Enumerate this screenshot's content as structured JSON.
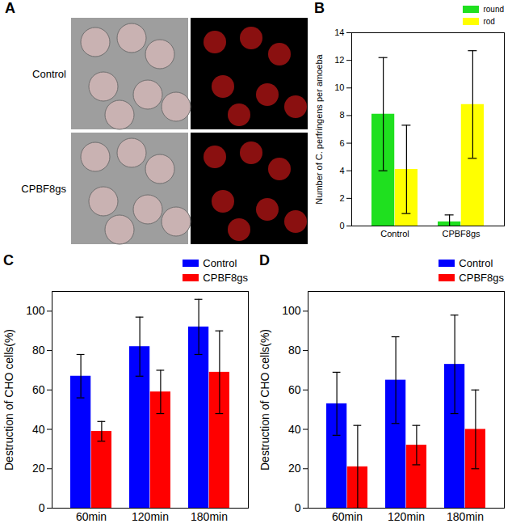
{
  "image_panel": {
    "title": "A",
    "row_labels": [
      "Control",
      "CPBF8gs"
    ]
  },
  "chart_data": [
    {
      "type": "bar",
      "title": "B",
      "categories": [
        "Control",
        "CPBF8gs"
      ],
      "series": [
        {
          "name": "round",
          "color": "#1fe01f",
          "values": [
            8.1,
            0.3
          ],
          "errors": [
            4.1,
            0.5
          ]
        },
        {
          "name": "rod",
          "color": "#ffff00",
          "values": [
            4.1,
            8.8
          ],
          "errors": [
            3.2,
            3.9
          ]
        }
      ],
      "y_label": "Number of C. perfringens per amoeba",
      "ylim": [
        0,
        14
      ],
      "yticks": [
        0,
        2,
        4,
        6,
        8,
        10,
        12,
        14
      ],
      "legend": "top-right"
    },
    {
      "type": "bar",
      "title": "C",
      "categories": [
        "60min",
        "120min",
        "180min"
      ],
      "series": [
        {
          "name": "Control",
          "color": "#0000ff",
          "values": [
            67,
            82,
            92
          ],
          "errors": [
            11,
            15,
            14
          ]
        },
        {
          "name": "CPBF8gs",
          "color": "#ff0000",
          "values": [
            39,
            59,
            69
          ],
          "errors": [
            5,
            11,
            21
          ]
        }
      ],
      "y_label": "Destruction of CHO cells(%)",
      "ylim": [
        0,
        110
      ],
      "yticks": [
        0,
        20,
        40,
        60,
        80,
        100
      ],
      "legend": "top-right"
    },
    {
      "type": "bar",
      "title": "D",
      "categories": [
        "60min",
        "120min",
        "180min"
      ],
      "series": [
        {
          "name": "Control",
          "color": "#0000ff",
          "values": [
            53,
            65,
            73
          ],
          "errors": [
            16,
            22,
            25
          ]
        },
        {
          "name": "CPBF8gs",
          "color": "#ff0000",
          "values": [
            21,
            32,
            40
          ],
          "errors": [
            21,
            10,
            20
          ]
        }
      ],
      "y_label": "Destruction of CHO cells(%)",
      "ylim": [
        0,
        110
      ],
      "yticks": [
        0,
        20,
        40,
        60,
        80,
        100
      ],
      "legend": "top-right"
    }
  ]
}
